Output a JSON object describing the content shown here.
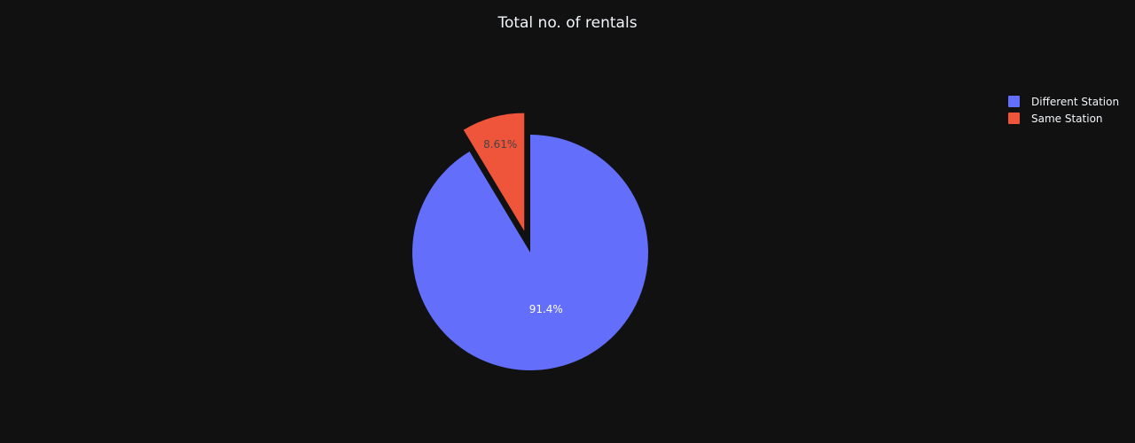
{
  "chart_data": {
    "type": "pie",
    "title": "Total no. of rentals",
    "labels": [
      "Different Station",
      "Same Station"
    ],
    "percent_labels": [
      "91.4%",
      "8.61%"
    ],
    "values": [
      91.39,
      8.61
    ],
    "pulled_slice": "Same Station",
    "legend": "top-right",
    "colors": [
      "#636efa",
      "#ef553b"
    ],
    "label_colors": [
      "#ffffff",
      "#444444"
    ]
  }
}
